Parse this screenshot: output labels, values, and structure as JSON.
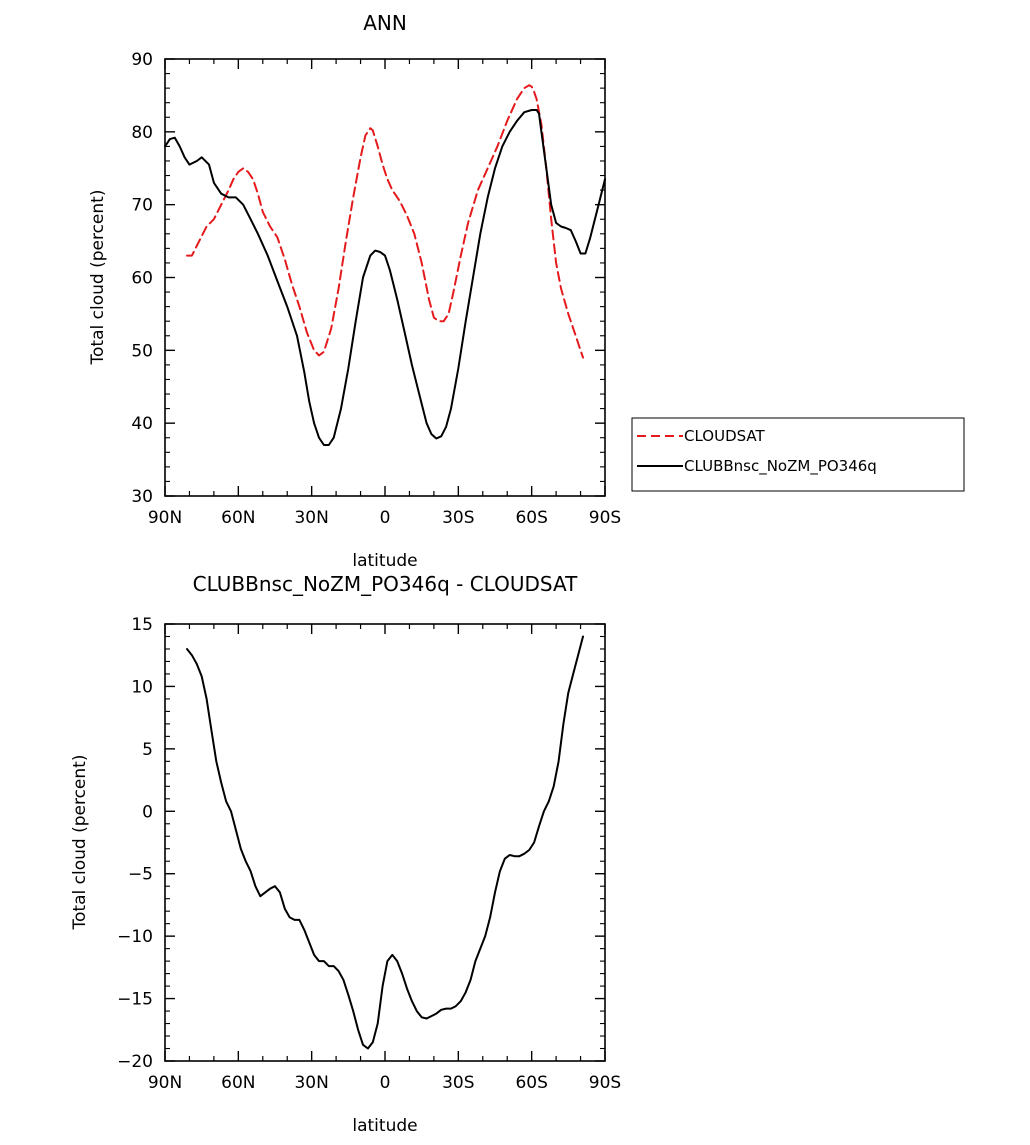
{
  "chart_data": [
    {
      "type": "line",
      "title": "ANN",
      "xlabel": "latitude",
      "ylabel": "Total cloud (percent)",
      "xlim": [
        90,
        -90
      ],
      "ylim": [
        30,
        90
      ],
      "xticks": [
        90,
        60,
        30,
        0,
        -30,
        -60,
        -90
      ],
      "xtick_labels": [
        "90N",
        "60N",
        "30N",
        "0",
        "30S",
        "60S",
        "90S"
      ],
      "yticks": [
        30,
        40,
        50,
        60,
        70,
        80,
        90
      ],
      "ytick_labels": [
        "30",
        "40",
        "50",
        "60",
        "70",
        "80",
        "90"
      ],
      "grid": false,
      "legend": "right-outside",
      "series": [
        {
          "name": "CLOUDSAT",
          "color": "#e41a1c",
          "dash": "dashed",
          "x": [
            81,
            79,
            76,
            73,
            70,
            67,
            64,
            62,
            60,
            58,
            56,
            54,
            52,
            50,
            47,
            44,
            41,
            38,
            35,
            32,
            29,
            27,
            25,
            22,
            19,
            16,
            13,
            10,
            8,
            6,
            5,
            3,
            1,
            -1,
            -3,
            -6,
            -9,
            -12,
            -15,
            -18,
            -20,
            -22,
            -24,
            -26,
            -28,
            -31,
            -34,
            -38,
            -42,
            -46,
            -50,
            -54,
            -57,
            -59,
            -60,
            -61,
            -62,
            -64,
            -66,
            -68,
            -70,
            -72,
            -75,
            -78,
            -81
          ],
          "y": [
            63,
            63,
            65,
            67,
            68,
            70,
            72,
            73.5,
            74.5,
            75,
            74.5,
            73.5,
            71.5,
            69,
            67,
            65.5,
            62.5,
            59,
            56,
            52.5,
            50,
            49.3,
            49.8,
            53,
            58.5,
            65,
            71,
            76.5,
            79.5,
            80.5,
            80.2,
            78,
            75.5,
            73.5,
            72,
            70.5,
            68.5,
            66,
            62,
            57,
            54.5,
            54,
            54,
            55,
            58,
            63,
            67.5,
            72,
            75,
            78,
            81.5,
            84.5,
            86,
            86.4,
            86.2,
            85.5,
            84.5,
            81,
            75,
            68,
            62,
            58.5,
            55,
            52,
            49
          ]
        },
        {
          "name": "CLUBBnsc_NoZM_PO346q",
          "color": "#000000",
          "dash": "solid",
          "x": [
            90,
            88,
            86,
            84,
            82,
            80,
            77,
            75,
            72,
            70,
            67,
            64,
            61,
            58,
            55,
            52,
            48,
            44,
            40,
            36,
            33,
            31,
            29,
            27,
            25,
            23,
            21,
            18,
            15,
            12,
            9,
            6,
            4,
            2,
            0,
            -2,
            -5,
            -8,
            -11,
            -14,
            -17,
            -19,
            -21,
            -23,
            -25,
            -27,
            -30,
            -33,
            -36,
            -39,
            -42,
            -45,
            -48,
            -51,
            -54,
            -57,
            -60,
            -62,
            -63,
            -64,
            -66,
            -68,
            -70,
            -72,
            -74,
            -76,
            -78,
            -80,
            -82,
            -84,
            -87,
            -90
          ],
          "y": [
            78,
            79,
            79.2,
            78,
            76.5,
            75.5,
            76,
            76.5,
            75.5,
            73,
            71.5,
            71,
            71,
            70,
            68,
            66,
            63,
            59.5,
            56,
            52,
            47,
            43,
            40,
            38,
            37,
            37,
            38,
            42,
            47.5,
            54,
            60,
            63,
            63.7,
            63.5,
            63,
            61,
            57,
            52.5,
            48,
            44,
            40,
            38.5,
            37.9,
            38.2,
            39.5,
            42,
            47.5,
            54,
            60,
            66,
            71,
            75,
            78,
            80,
            81.5,
            82.7,
            83,
            83,
            82.5,
            80,
            75,
            70,
            67.5,
            67,
            66.8,
            66.5,
            65,
            63.3,
            63.3,
            65.5,
            69.5,
            73.5
          ]
        }
      ]
    },
    {
      "type": "line",
      "title": "CLUBBnsc_NoZM_PO346q - CLOUDSAT",
      "xlabel": "latitude",
      "ylabel": "Total cloud (percent)",
      "xlim": [
        90,
        -90
      ],
      "ylim": [
        -20,
        15
      ],
      "xticks": [
        90,
        60,
        30,
        0,
        -30,
        -60,
        -90
      ],
      "xtick_labels": [
        "90N",
        "60N",
        "30N",
        "0",
        "30S",
        "60S",
        "90S"
      ],
      "yticks": [
        -20,
        -15,
        -10,
        -5,
        0,
        5,
        10,
        15
      ],
      "ytick_labels": [
        "−20",
        "−15",
        "−10",
        "−5",
        "0",
        "5",
        "10",
        "15"
      ],
      "grid": false,
      "series": [
        {
          "name": "",
          "color": "#000000",
          "dash": "solid",
          "x": [
            81,
            79,
            77,
            75,
            73,
            71,
            69,
            67,
            65,
            63,
            61,
            59,
            57,
            55,
            53,
            51,
            49,
            47,
            45,
            43,
            41,
            39,
            37,
            35,
            33,
            31,
            29,
            27,
            25,
            23,
            21,
            19,
            17,
            15,
            13,
            11,
            9,
            7,
            5,
            3,
            1,
            -1,
            -3,
            -5,
            -7,
            -9,
            -11,
            -13,
            -15,
            -17,
            -19,
            -21,
            -23,
            -25,
            -27,
            -29,
            -31,
            -33,
            -35,
            -37,
            -39,
            -41,
            -43,
            -45,
            -47,
            -49,
            -51,
            -53,
            -55,
            -57,
            -59,
            -61,
            -63,
            -65,
            -67,
            -69,
            -71,
            -73,
            -75,
            -77,
            -79,
            -81
          ],
          "y": [
            13,
            12.5,
            11.8,
            10.8,
            9,
            6.5,
            4,
            2.3,
            0.8,
            0,
            -1.5,
            -3,
            -4,
            -4.8,
            -6,
            -6.8,
            -6.5,
            -6.2,
            -6,
            -6.5,
            -7.8,
            -8.5,
            -8.7,
            -8.7,
            -9.5,
            -10.5,
            -11.5,
            -12,
            -12,
            -12.4,
            -12.4,
            -12.8,
            -13.5,
            -14.7,
            -16,
            -17.5,
            -18.7,
            -19,
            -18.5,
            -17,
            -14,
            -12,
            -11.5,
            -12,
            -13,
            -14.2,
            -15.2,
            -16,
            -16.5,
            -16.6,
            -16.4,
            -16.2,
            -15.9,
            -15.8,
            -15.8,
            -15.6,
            -15.2,
            -14.5,
            -13.5,
            -12,
            -11,
            -10,
            -8.5,
            -6.5,
            -4.8,
            -3.8,
            -3.5,
            -3.6,
            -3.6,
            -3.4,
            -3.1,
            -2.5,
            -1.2,
            0,
            0.8,
            2,
            4,
            7,
            9.5,
            11,
            12.5,
            14
          ]
        }
      ]
    }
  ]
}
